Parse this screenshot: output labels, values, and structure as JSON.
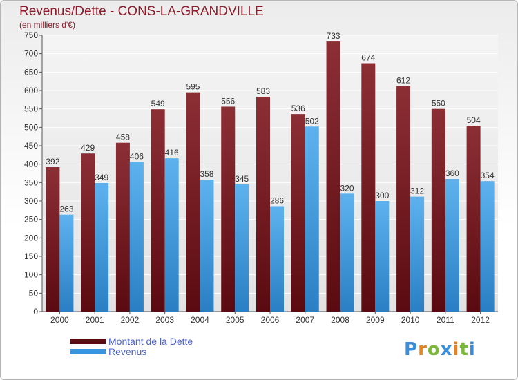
{
  "chart_data": {
    "type": "bar",
    "title": "Revenus/Dette - CONS-LA-GRANDVILLE",
    "subtitle": "(en milliers d'€)",
    "categories": [
      "2000",
      "2001",
      "2002",
      "2003",
      "2004",
      "2005",
      "2006",
      "2007",
      "2008",
      "2009",
      "2010",
      "2011",
      "2012"
    ],
    "series": [
      {
        "name": "Montant de la Dette",
        "values": [
          392,
          429,
          458,
          549,
          595,
          556,
          583,
          536,
          733,
          674,
          612,
          550,
          504
        ],
        "color": "#7a1f24"
      },
      {
        "name": "Revenus",
        "values": [
          263,
          349,
          406,
          416,
          358,
          345,
          286,
          502,
          320,
          300,
          312,
          360,
          354
        ],
        "color": "#4aa3e6"
      }
    ],
    "ylim": [
      0,
      750
    ],
    "yticks": [
      0,
      50,
      100,
      150,
      200,
      250,
      300,
      350,
      400,
      450,
      500,
      550,
      600,
      650,
      700,
      750
    ],
    "grid": true,
    "legend_position": "bottom-left"
  },
  "logo": {
    "text": "Proxiti"
  }
}
